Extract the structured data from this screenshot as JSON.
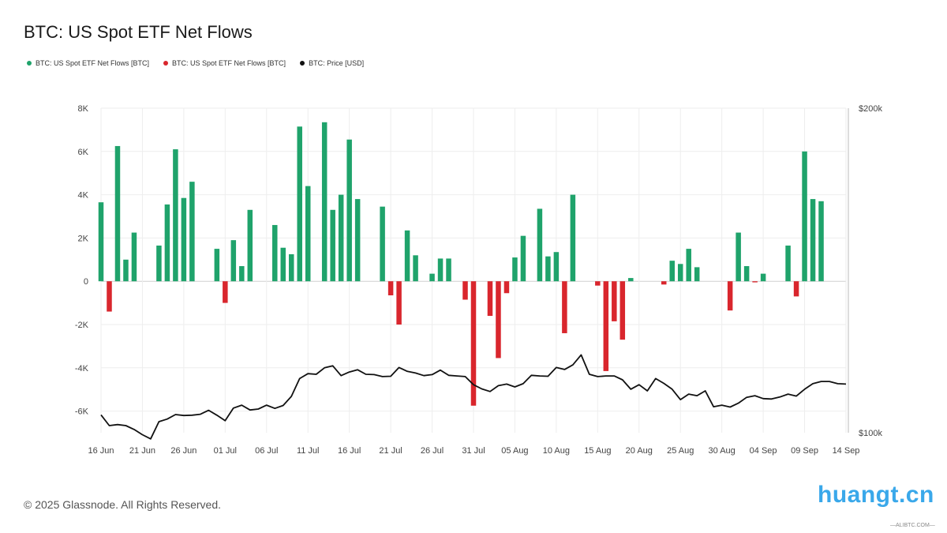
{
  "colors": {
    "inflow": "#1fa36b",
    "outflow": "#d9262d",
    "price": "#111111",
    "grid": "#eeeeee",
    "watermark": "#3aa8ea"
  },
  "footer": "© 2025 Glassnode. All Rights Reserved.",
  "watermark": {
    "text": "huangt.cn",
    "sub": "—ALIBTC.COM—"
  },
  "chart_data": {
    "type": "bar",
    "title": "BTC: US Spot ETF Net Flows",
    "legend": [
      {
        "label": "BTC: US Spot ETF Net Flows [BTC]",
        "color": "#1fa36b"
      },
      {
        "label": "BTC: US Spot ETF Net Flows [BTC]",
        "color": "#d9262d"
      },
      {
        "label": "BTC: Price [USD]",
        "color": "#111111"
      }
    ],
    "legend_position": "top-left",
    "grid": true,
    "ylim": [
      -7000,
      8000
    ],
    "y2lim": [
      100000,
      200000
    ],
    "y_ticks": [
      "8K",
      "6K",
      "4K",
      "2K",
      "0",
      "-2K",
      "-4K",
      "-6K"
    ],
    "y_tick_values": [
      8000,
      6000,
      4000,
      2000,
      0,
      -2000,
      -4000,
      -6000
    ],
    "y2_ticks": [
      "$200k",
      "$100k"
    ],
    "y2_tick_values": [
      200000,
      100000
    ],
    "x_ticks": [
      "16 Jun",
      "21 Jun",
      "26 Jun",
      "01 Jul",
      "06 Jul",
      "11 Jul",
      "16 Jul",
      "21 Jul",
      "26 Jul",
      "31 Jul",
      "05 Aug",
      "10 Aug",
      "15 Aug",
      "20 Aug",
      "25 Aug",
      "30 Aug",
      "04 Sep",
      "09 Sep",
      "14 Sep"
    ],
    "x_tick_days": [
      0,
      5,
      10,
      15,
      20,
      25,
      30,
      35,
      40,
      45,
      50,
      55,
      60,
      65,
      70,
      75,
      80,
      85,
      90
    ],
    "series": [
      {
        "name": "BTC: US Spot ETF Net Flows [BTC]",
        "type": "bar",
        "values": [
          3650,
          -1400,
          6250,
          1000,
          2250,
          0,
          0,
          1650,
          3550,
          6100,
          3850,
          4600,
          0,
          0,
          1500,
          -1000,
          1900,
          700,
          3300,
          0,
          0,
          2600,
          1550,
          1250,
          7150,
          4400,
          0,
          7350,
          3300,
          4000,
          6550,
          3800,
          0,
          0,
          3450,
          -650,
          -2000,
          2350,
          1200,
          0,
          350,
          1050,
          1050,
          0,
          -850,
          -5750,
          0,
          -1600,
          -3550,
          -550,
          1100,
          2100,
          0,
          3350,
          1150,
          1350,
          -2400,
          4000,
          0,
          0,
          -200,
          -4150,
          -1850,
          -2700,
          150,
          0,
          0,
          0,
          -150,
          950,
          800,
          1500,
          650,
          0,
          0,
          0,
          -1350,
          2250,
          700,
          -50,
          350,
          0,
          0,
          1650,
          -700,
          6000,
          3800,
          3700,
          0,
          0,
          0
        ]
      },
      {
        "name": "BTC: Price [USD]",
        "type": "line",
        "values": [
          105500,
          102200,
          102500,
          102200,
          101000,
          99400,
          98100,
          103400,
          104200,
          105600,
          105300,
          105400,
          105700,
          106900,
          105400,
          103700,
          107600,
          108500,
          107000,
          107300,
          108500,
          107500,
          108400,
          111200,
          116700,
          118200,
          118000,
          120000,
          120600,
          117600,
          118700,
          119400,
          118000,
          117900,
          117300,
          117400,
          120100,
          118900,
          118400,
          117600,
          117900,
          119300,
          117700,
          117500,
          117300,
          114800,
          113500,
          112700,
          114500,
          115000,
          114100,
          115100,
          117700,
          117500,
          117400,
          120100,
          119500,
          120900,
          124000,
          118000,
          117300,
          117500,
          117500,
          116300,
          113400,
          114800,
          112900,
          116700,
          115200,
          113400,
          110200,
          111900,
          111400,
          112900,
          108000,
          108500,
          107900,
          109100,
          110900,
          111400,
          110500,
          110400,
          111000,
          111900,
          111300,
          113400,
          115100,
          115800,
          115800,
          115100,
          115000
        ]
      }
    ]
  }
}
